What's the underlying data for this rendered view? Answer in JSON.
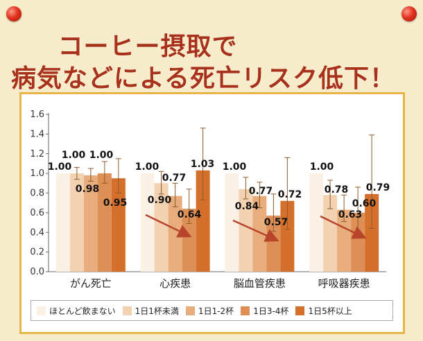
{
  "titles": {
    "line1": "コーヒー摂取で",
    "line2": "病気などによる死亡リスク低下！"
  },
  "colors": {
    "series": [
      "#fbf0e4",
      "#f3d2b2",
      "#e8ad7c",
      "#de8f55",
      "#d4702c"
    ],
    "arrow": "#b9442c",
    "error_bar": "#8a5a2a",
    "panel_border": "#e8b447"
  },
  "chart_data": {
    "type": "bar",
    "categories": [
      "がん死亡",
      "心疾患",
      "脳血管疾患",
      "呼吸器疾患"
    ],
    "series": [
      {
        "name": "ほとんど飲まない",
        "values": [
          1.0,
          1.0,
          1.0,
          1.0
        ]
      },
      {
        "name": "1日1杯未満",
        "values": [
          1.0,
          0.9,
          0.84,
          0.78
        ]
      },
      {
        "name": "1日1-2杯",
        "values": [
          0.98,
          0.77,
          0.77,
          0.63
        ]
      },
      {
        "name": "1日3-4杯",
        "values": [
          1.0,
          0.64,
          0.57,
          0.6
        ]
      },
      {
        "name": "1日5杯以上",
        "values": [
          0.95,
          1.03,
          0.72,
          0.79
        ]
      }
    ],
    "error_bars": [
      [
        null,
        null,
        null,
        null
      ],
      [
        [
          0.94,
          1.06
        ],
        [
          0.79,
          1.02
        ],
        [
          0.74,
          0.96
        ],
        [
          0.64,
          0.93
        ]
      ],
      [
        [
          0.92,
          1.05
        ],
        [
          0.66,
          0.9
        ],
        [
          0.65,
          0.91
        ],
        [
          0.51,
          0.78
        ]
      ],
      [
        [
          0.9,
          1.12
        ],
        [
          0.49,
          0.84
        ],
        [
          0.41,
          0.79
        ],
        [
          0.42,
          0.86
        ]
      ],
      [
        [
          0.8,
          1.15
        ],
        [
          0.73,
          1.46
        ],
        [
          0.43,
          1.16
        ],
        [
          0.44,
          1.39
        ]
      ]
    ],
    "ylim": [
      0.0,
      1.6
    ],
    "yticks": [
      "0.0",
      "0.2",
      "0.4",
      "0.6",
      "0.8",
      "1.0",
      "1.2",
      "1.4",
      "1.6"
    ],
    "legend_position": "bottom",
    "trend_arrows": "decreasing trend arrows in 心疾患, 脳血管疾患, 呼吸器疾患"
  }
}
